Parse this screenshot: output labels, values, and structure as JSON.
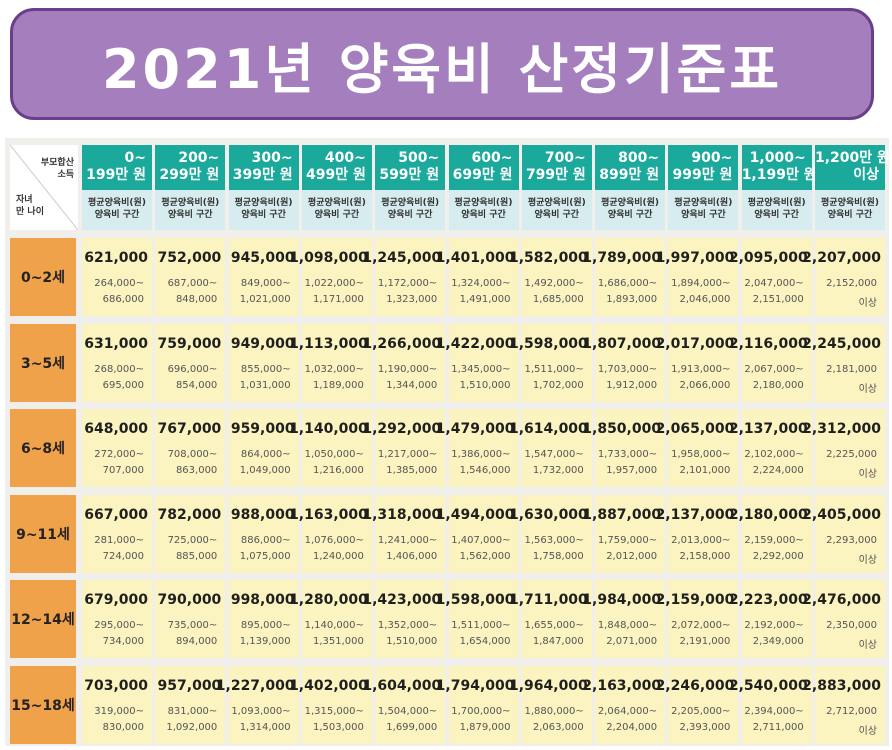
{
  "title": "2021년 양육비 산정기준표",
  "corner": {
    "top": "부모합산\n소득",
    "bottom": "자녀\n만 나이"
  },
  "column_sub": "평균양육비(원)\n양육비 구간",
  "columns": [
    "0~\n199만 원",
    "200~\n299만 원",
    "300~\n399만 원",
    "400~\n499만 원",
    "500~\n599만 원",
    "600~\n699만 원",
    "700~\n799만 원",
    "800~\n899만 원",
    "900~\n999만 원",
    "1,000~\n1,199만 원",
    "1,200만 원\n이상"
  ],
  "rows": [
    {
      "label": "0~2세",
      "cells": [
        {
          "avg": "621,000",
          "lo": "264,000~",
          "hi": "686,000"
        },
        {
          "avg": "752,000",
          "lo": "687,000~",
          "hi": "848,000"
        },
        {
          "avg": "945,000",
          "lo": "849,000~",
          "hi": "1,021,000"
        },
        {
          "avg": "1,098,000",
          "lo": "1,022,000~",
          "hi": "1,171,000"
        },
        {
          "avg": "1,245,000",
          "lo": "1,172,000~",
          "hi": "1,323,000"
        },
        {
          "avg": "1,401,000",
          "lo": "1,324,000~",
          "hi": "1,491,000"
        },
        {
          "avg": "1,582,000",
          "lo": "1,492,000~",
          "hi": "1,685,000"
        },
        {
          "avg": "1,789,000",
          "lo": "1,686,000~",
          "hi": "1,893,000"
        },
        {
          "avg": "1,997,000",
          "lo": "1,894,000~",
          "hi": "2,046,000"
        },
        {
          "avg": "2,095,000",
          "lo": "2,047,000~",
          "hi": "2,151,000"
        },
        {
          "avg": "2,207,000",
          "lo": "2,152,000",
          "hi": "이상"
        }
      ]
    },
    {
      "label": "3~5세",
      "cells": [
        {
          "avg": "631,000",
          "lo": "268,000~",
          "hi": "695,000"
        },
        {
          "avg": "759,000",
          "lo": "696,000~",
          "hi": "854,000"
        },
        {
          "avg": "949,000",
          "lo": "855,000~",
          "hi": "1,031,000"
        },
        {
          "avg": "1,113,000",
          "lo": "1,032,000~",
          "hi": "1,189,000"
        },
        {
          "avg": "1,266,000",
          "lo": "1,190,000~",
          "hi": "1,344,000"
        },
        {
          "avg": "1,422,000",
          "lo": "1,345,000~",
          "hi": "1,510,000"
        },
        {
          "avg": "1,598,000",
          "lo": "1,511,000~",
          "hi": "1,702,000"
        },
        {
          "avg": "1,807,000",
          "lo": "1,703,000~",
          "hi": "1,912,000"
        },
        {
          "avg": "2,017,000",
          "lo": "1,913,000~",
          "hi": "2,066,000"
        },
        {
          "avg": "2,116,000",
          "lo": "2,067,000~",
          "hi": "2,180,000"
        },
        {
          "avg": "2,245,000",
          "lo": "2,181,000",
          "hi": "이상"
        }
      ]
    },
    {
      "label": "6~8세",
      "cells": [
        {
          "avg": "648,000",
          "lo": "272,000~",
          "hi": "707,000"
        },
        {
          "avg": "767,000",
          "lo": "708,000~",
          "hi": "863,000"
        },
        {
          "avg": "959,000",
          "lo": "864,000~",
          "hi": "1,049,000"
        },
        {
          "avg": "1,140,000",
          "lo": "1,050,000~",
          "hi": "1,216,000"
        },
        {
          "avg": "1,292,000",
          "lo": "1,217,000~",
          "hi": "1,385,000"
        },
        {
          "avg": "1,479,000",
          "lo": "1,386,000~",
          "hi": "1,546,000"
        },
        {
          "avg": "1,614,000",
          "lo": "1,547,000~",
          "hi": "1,732,000"
        },
        {
          "avg": "1,850,000",
          "lo": "1,733,000~",
          "hi": "1,957,000"
        },
        {
          "avg": "2,065,000",
          "lo": "1,958,000~",
          "hi": "2,101,000"
        },
        {
          "avg": "2,137,000",
          "lo": "2,102,000~",
          "hi": "2,224,000"
        },
        {
          "avg": "2,312,000",
          "lo": "2,225,000",
          "hi": "이상"
        }
      ]
    },
    {
      "label": "9~11세",
      "cells": [
        {
          "avg": "667,000",
          "lo": "281,000~",
          "hi": "724,000"
        },
        {
          "avg": "782,000",
          "lo": "725,000~",
          "hi": "885,000"
        },
        {
          "avg": "988,000",
          "lo": "886,000~",
          "hi": "1,075,000"
        },
        {
          "avg": "1,163,000",
          "lo": "1,076,000~",
          "hi": "1,240,000"
        },
        {
          "avg": "1,318,000",
          "lo": "1,241,000~",
          "hi": "1,406,000"
        },
        {
          "avg": "1,494,000",
          "lo": "1,407,000~",
          "hi": "1,562,000"
        },
        {
          "avg": "1,630,000",
          "lo": "1,563,000~",
          "hi": "1,758,000"
        },
        {
          "avg": "1,887,000",
          "lo": "1,759,000~",
          "hi": "2,012,000"
        },
        {
          "avg": "2,137,000",
          "lo": "2,013,000~",
          "hi": "2,158,000"
        },
        {
          "avg": "2,180,000",
          "lo": "2,159,000~",
          "hi": "2,292,000"
        },
        {
          "avg": "2,405,000",
          "lo": "2,293,000",
          "hi": "이상"
        }
      ]
    },
    {
      "label": "12~14세",
      "cells": [
        {
          "avg": "679,000",
          "lo": "295,000~",
          "hi": "734,000"
        },
        {
          "avg": "790,000",
          "lo": "735,000~",
          "hi": "894,000"
        },
        {
          "avg": "998,000",
          "lo": "895,000~",
          "hi": "1,139,000"
        },
        {
          "avg": "1,280,000",
          "lo": "1,140,000~",
          "hi": "1,351,000"
        },
        {
          "avg": "1,423,000",
          "lo": "1,352,000~",
          "hi": "1,510,000"
        },
        {
          "avg": "1,598,000",
          "lo": "1,511,000~",
          "hi": "1,654,000"
        },
        {
          "avg": "1,711,000",
          "lo": "1,655,000~",
          "hi": "1,847,000"
        },
        {
          "avg": "1,984,000",
          "lo": "1,848,000~",
          "hi": "2,071,000"
        },
        {
          "avg": "2,159,000",
          "lo": "2,072,000~",
          "hi": "2,191,000"
        },
        {
          "avg": "2,223,000",
          "lo": "2,192,000~",
          "hi": "2,349,000"
        },
        {
          "avg": "2,476,000",
          "lo": "2,350,000",
          "hi": "이상"
        }
      ]
    },
    {
      "label": "15~18세",
      "cells": [
        {
          "avg": "703,000",
          "lo": "319,000~",
          "hi": "830,000"
        },
        {
          "avg": "957,000",
          "lo": "831,000~",
          "hi": "1,092,000"
        },
        {
          "avg": "1,227,000",
          "lo": "1,093,000~",
          "hi": "1,314,000"
        },
        {
          "avg": "1,402,000",
          "lo": "1,315,000~",
          "hi": "1,503,000"
        },
        {
          "avg": "1,604,000",
          "lo": "1,504,000~",
          "hi": "1,699,000"
        },
        {
          "avg": "1,794,000",
          "lo": "1,700,000~",
          "hi": "1,879,000"
        },
        {
          "avg": "1,964,000",
          "lo": "1,880,000~",
          "hi": "2,063,000"
        },
        {
          "avg": "2,163,000",
          "lo": "2,064,000~",
          "hi": "2,204,000"
        },
        {
          "avg": "2,246,000",
          "lo": "2,205,000~",
          "hi": "2,393,000"
        },
        {
          "avg": "2,540,000",
          "lo": "2,394,000~",
          "hi": "2,711,000"
        },
        {
          "avg": "2,883,000",
          "lo": "2,712,000",
          "hi": "이상"
        }
      ]
    }
  ]
}
